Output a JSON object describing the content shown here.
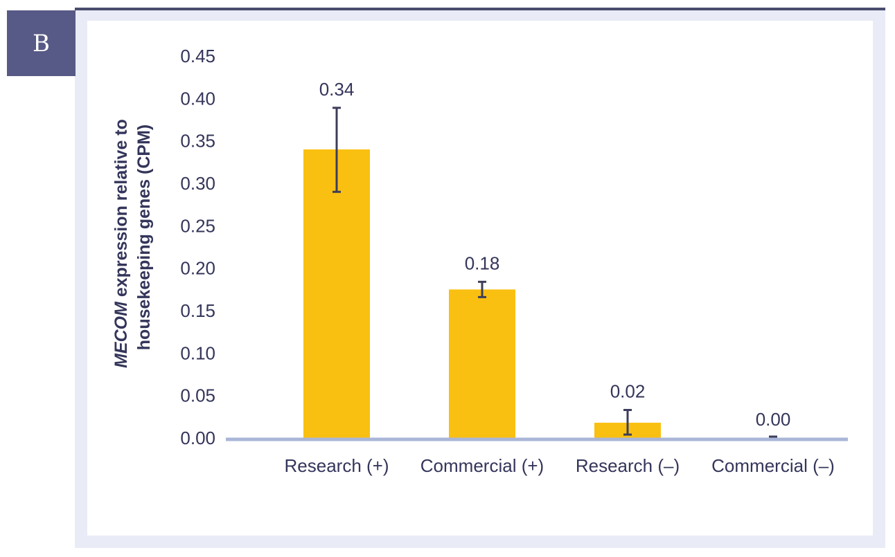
{
  "panel_label": "B",
  "colors": {
    "bar": "#fac011",
    "axis": "#aab6d8",
    "text": "#34355a",
    "error_bar": "#3c3d5a"
  },
  "chart_data": {
    "type": "bar",
    "categories": [
      "Research (+)",
      "Commercial (+)",
      "Research (–)",
      "Commercial (–)"
    ],
    "values": [
      0.34,
      0.175,
      0.018,
      0.0
    ],
    "value_labels": [
      "0.34",
      "0.18",
      "0.02",
      "0.00"
    ],
    "error_low": [
      0.29,
      0.166,
      0.004,
      0.0
    ],
    "error_high": [
      0.389,
      0.184,
      0.033,
      0.0
    ],
    "ylabel_italic": "MECOM",
    "ylabel_rest": " expression relative to",
    "ylabel_line2": "housekeeping genes (CPM)",
    "ylim": [
      0,
      0.45
    ],
    "yticks": [
      "0.00",
      "0.05",
      "0.10",
      "0.15",
      "0.20",
      "0.25",
      "0.30",
      "0.35",
      "0.40",
      "0.45"
    ],
    "grid": false,
    "legend": "none"
  }
}
